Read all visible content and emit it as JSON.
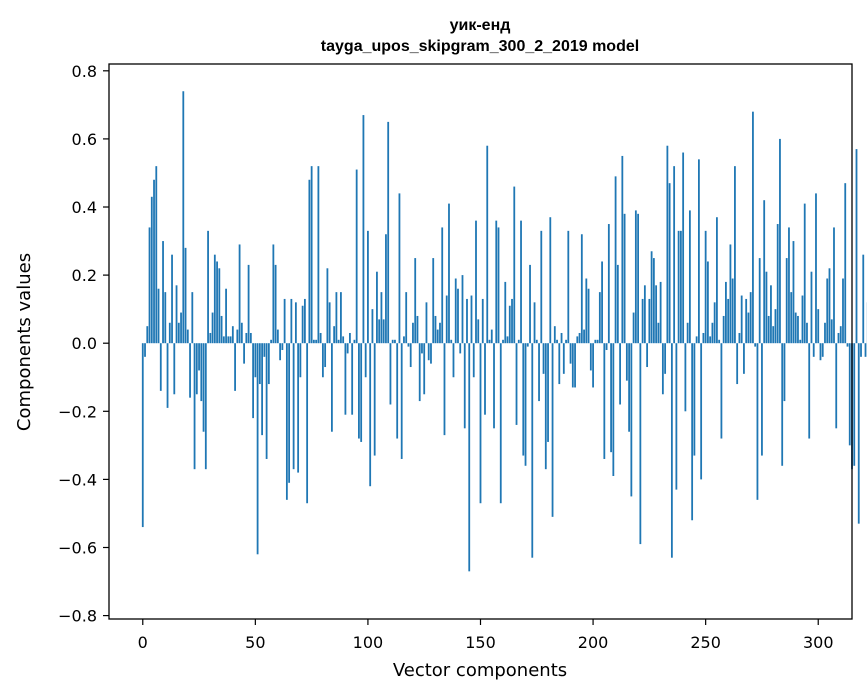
{
  "chart_data": {
    "type": "bar",
    "title": "уик-енд",
    "subtitle": "tayga_upos_skipgram_300_2_2019 model",
    "xlabel": "Vector components",
    "ylabel": "Components values",
    "xlim": [
      -15,
      315
    ],
    "ylim": [
      -0.81,
      0.82
    ],
    "xticks": [
      0,
      50,
      100,
      150,
      200,
      250,
      300
    ],
    "xtick_labels": [
      "0",
      "50",
      "100",
      "150",
      "200",
      "250",
      "300"
    ],
    "yticks": [
      -0.8,
      -0.6,
      -0.4,
      -0.2,
      0.0,
      0.2,
      0.4,
      0.6,
      0.8
    ],
    "ytick_labels": [
      "−0.8",
      "−0.6",
      "−0.4",
      "−0.2",
      "0.0",
      "0.2",
      "0.4",
      "0.6",
      "0.8"
    ],
    "bar_color": "#1f77b4",
    "values": [
      -0.54,
      -0.04,
      0.05,
      0.34,
      0.43,
      0.48,
      0.52,
      0.16,
      -0.14,
      0.3,
      0.15,
      -0.19,
      0.06,
      0.26,
      -0.15,
      0.17,
      0.06,
      0.09,
      0.74,
      0.28,
      0.04,
      -0.16,
      0.15,
      -0.37,
      -0.15,
      -0.08,
      -0.17,
      -0.26,
      -0.37,
      0.33,
      0.03,
      0.09,
      0.26,
      0.24,
      0.22,
      0.08,
      0.02,
      0.16,
      0.02,
      0.02,
      0.05,
      -0.14,
      0.04,
      0.29,
      0.06,
      -0.06,
      0.03,
      0.23,
      0.03,
      -0.22,
      -0.1,
      -0.62,
      -0.12,
      -0.27,
      -0.04,
      -0.34,
      -0.12,
      0.01,
      0.29,
      0.23,
      0.04,
      -0.05,
      -0.02,
      0.13,
      -0.46,
      -0.41,
      0.13,
      -0.37,
      0.12,
      -0.38,
      -0.1,
      0.11,
      0.13,
      -0.47,
      0.48,
      0.52,
      0.01,
      0.01,
      0.52,
      0.03,
      -0.1,
      -0.07,
      0.22,
      0.12,
      -0.26,
      0.05,
      0.15,
      0.01,
      0.15,
      0.02,
      -0.21,
      -0.03,
      0.03,
      -0.21,
      0.01,
      0.51,
      -0.28,
      -0.29,
      0.67,
      -0.1,
      0.33,
      -0.42,
      0.1,
      -0.33,
      0.21,
      0.07,
      0.15,
      0.07,
      0.32,
      0.65,
      -0.18,
      0.01,
      0.01,
      -0.28,
      0.44,
      -0.34,
      0.02,
      0.15,
      -0.01,
      -0.07,
      0.06,
      0.25,
      0.08,
      -0.17,
      -0.03,
      -0.15,
      0.12,
      -0.05,
      -0.06,
      0.25,
      0.08,
      0.04,
      0.06,
      0.34,
      -0.27,
      0.14,
      0.41,
      0.01,
      -0.1,
      0.19,
      0.16,
      -0.03,
      0.2,
      -0.25,
      0.13,
      -0.67,
      0.14,
      -0.1,
      0.36,
      0.07,
      -0.47,
      0.13,
      -0.21,
      0.58,
      0.01,
      0.04,
      -0.25,
      0.36,
      0.34,
      -0.47,
      0.01,
      0.18,
      0.02,
      0.11,
      0.13,
      0.46,
      -0.24,
      0.01,
      0.36,
      -0.33,
      -0.36,
      -0.01,
      0.23,
      -0.63,
      0.12,
      0.01,
      -0.17,
      0.33,
      -0.09,
      -0.37,
      -0.29,
      0.37,
      -0.51,
      0.05,
      0.01,
      -0.12,
      0.03,
      -0.09,
      0.01,
      0.33,
      -0.06,
      -0.13,
      -0.13,
      0.02,
      0.03,
      0.32,
      0.04,
      0.19,
      0.16,
      -0.08,
      -0.13,
      0.01,
      0.01,
      0.15,
      0.24,
      -0.34,
      -0.02,
      0.35,
      -0.32,
      -0.39,
      0.49,
      0.23,
      -0.18,
      0.55,
      0.38,
      -0.11,
      -0.26,
      -0.45,
      0.09,
      0.39,
      0.38,
      -0.59,
      0.13,
      0.17,
      -0.07,
      0.13,
      0.27,
      0.25,
      0.17,
      0.06,
      0.18,
      -0.15,
      -0.09,
      0.58,
      0.47,
      -0.63,
      0.52,
      -0.43,
      0.33,
      0.33,
      0.56,
      -0.2,
      0.06,
      0.39,
      -0.52,
      -0.33,
      0.02,
      0.54,
      -0.4,
      0.03,
      0.33,
      0.24,
      0.02,
      0.06,
      0.12,
      0.37,
      0.01,
      -0.28,
      0.08,
      0.18,
      0.13,
      0.29,
      0.19,
      0.52,
      -0.12,
      0.03,
      0.14,
      -0.09,
      0.13,
      0.09,
      0.15,
      0.68,
      -0.01,
      -0.46,
      0.25,
      -0.33,
      0.42,
      0.21,
      0.08,
      0.17,
      0.05,
      0.1,
      0.35,
      0.6,
      -0.36,
      -0.17,
      0.25,
      0.34,
      0.15,
      0.3,
      0.09,
      0.08,
      0.01,
      0.14,
      0.41,
      0.06,
      -0.28,
      0.21,
      -0.04,
      0.44,
      0.1,
      -0.05,
      -0.04,
      0.06,
      0.19,
      0.22,
      0.07,
      0.34,
      -0.25,
      0.03,
      0.05,
      0.19,
      0.47,
      -0.01,
      -0.3,
      -0.37,
      -0.36,
      0.57,
      -0.53,
      -0.04,
      0.26,
      -0.04,
      0.12,
      -0.13
    ]
  }
}
